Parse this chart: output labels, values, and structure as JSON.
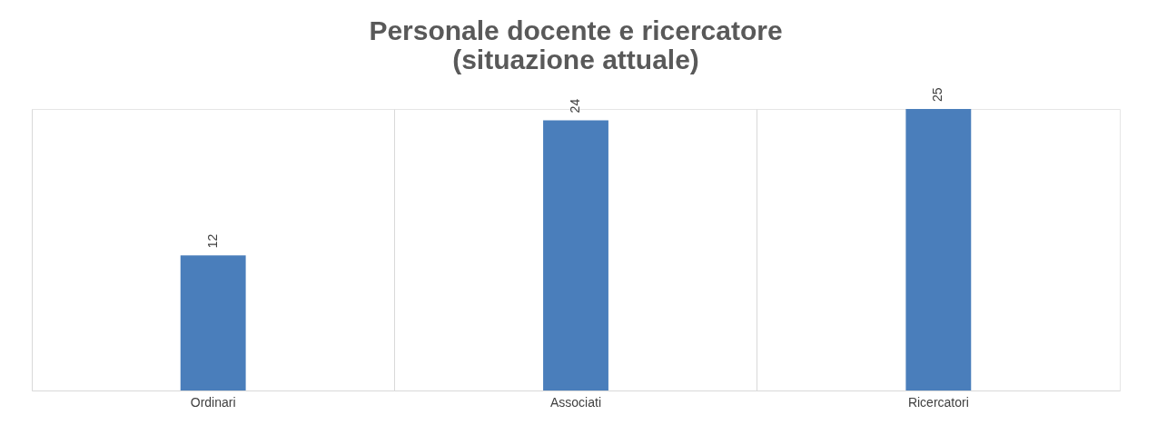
{
  "chart_data": {
    "type": "bar",
    "title": [
      "Personale docente e ricercatore",
      "(situazione attuale)"
    ],
    "categories": [
      "Ordinari",
      "Associati",
      "Ricercatori"
    ],
    "values": [
      12,
      24,
      25
    ],
    "color": "#4a7ebb",
    "data_labels": true,
    "grid": "x",
    "tick_labels": "x"
  }
}
